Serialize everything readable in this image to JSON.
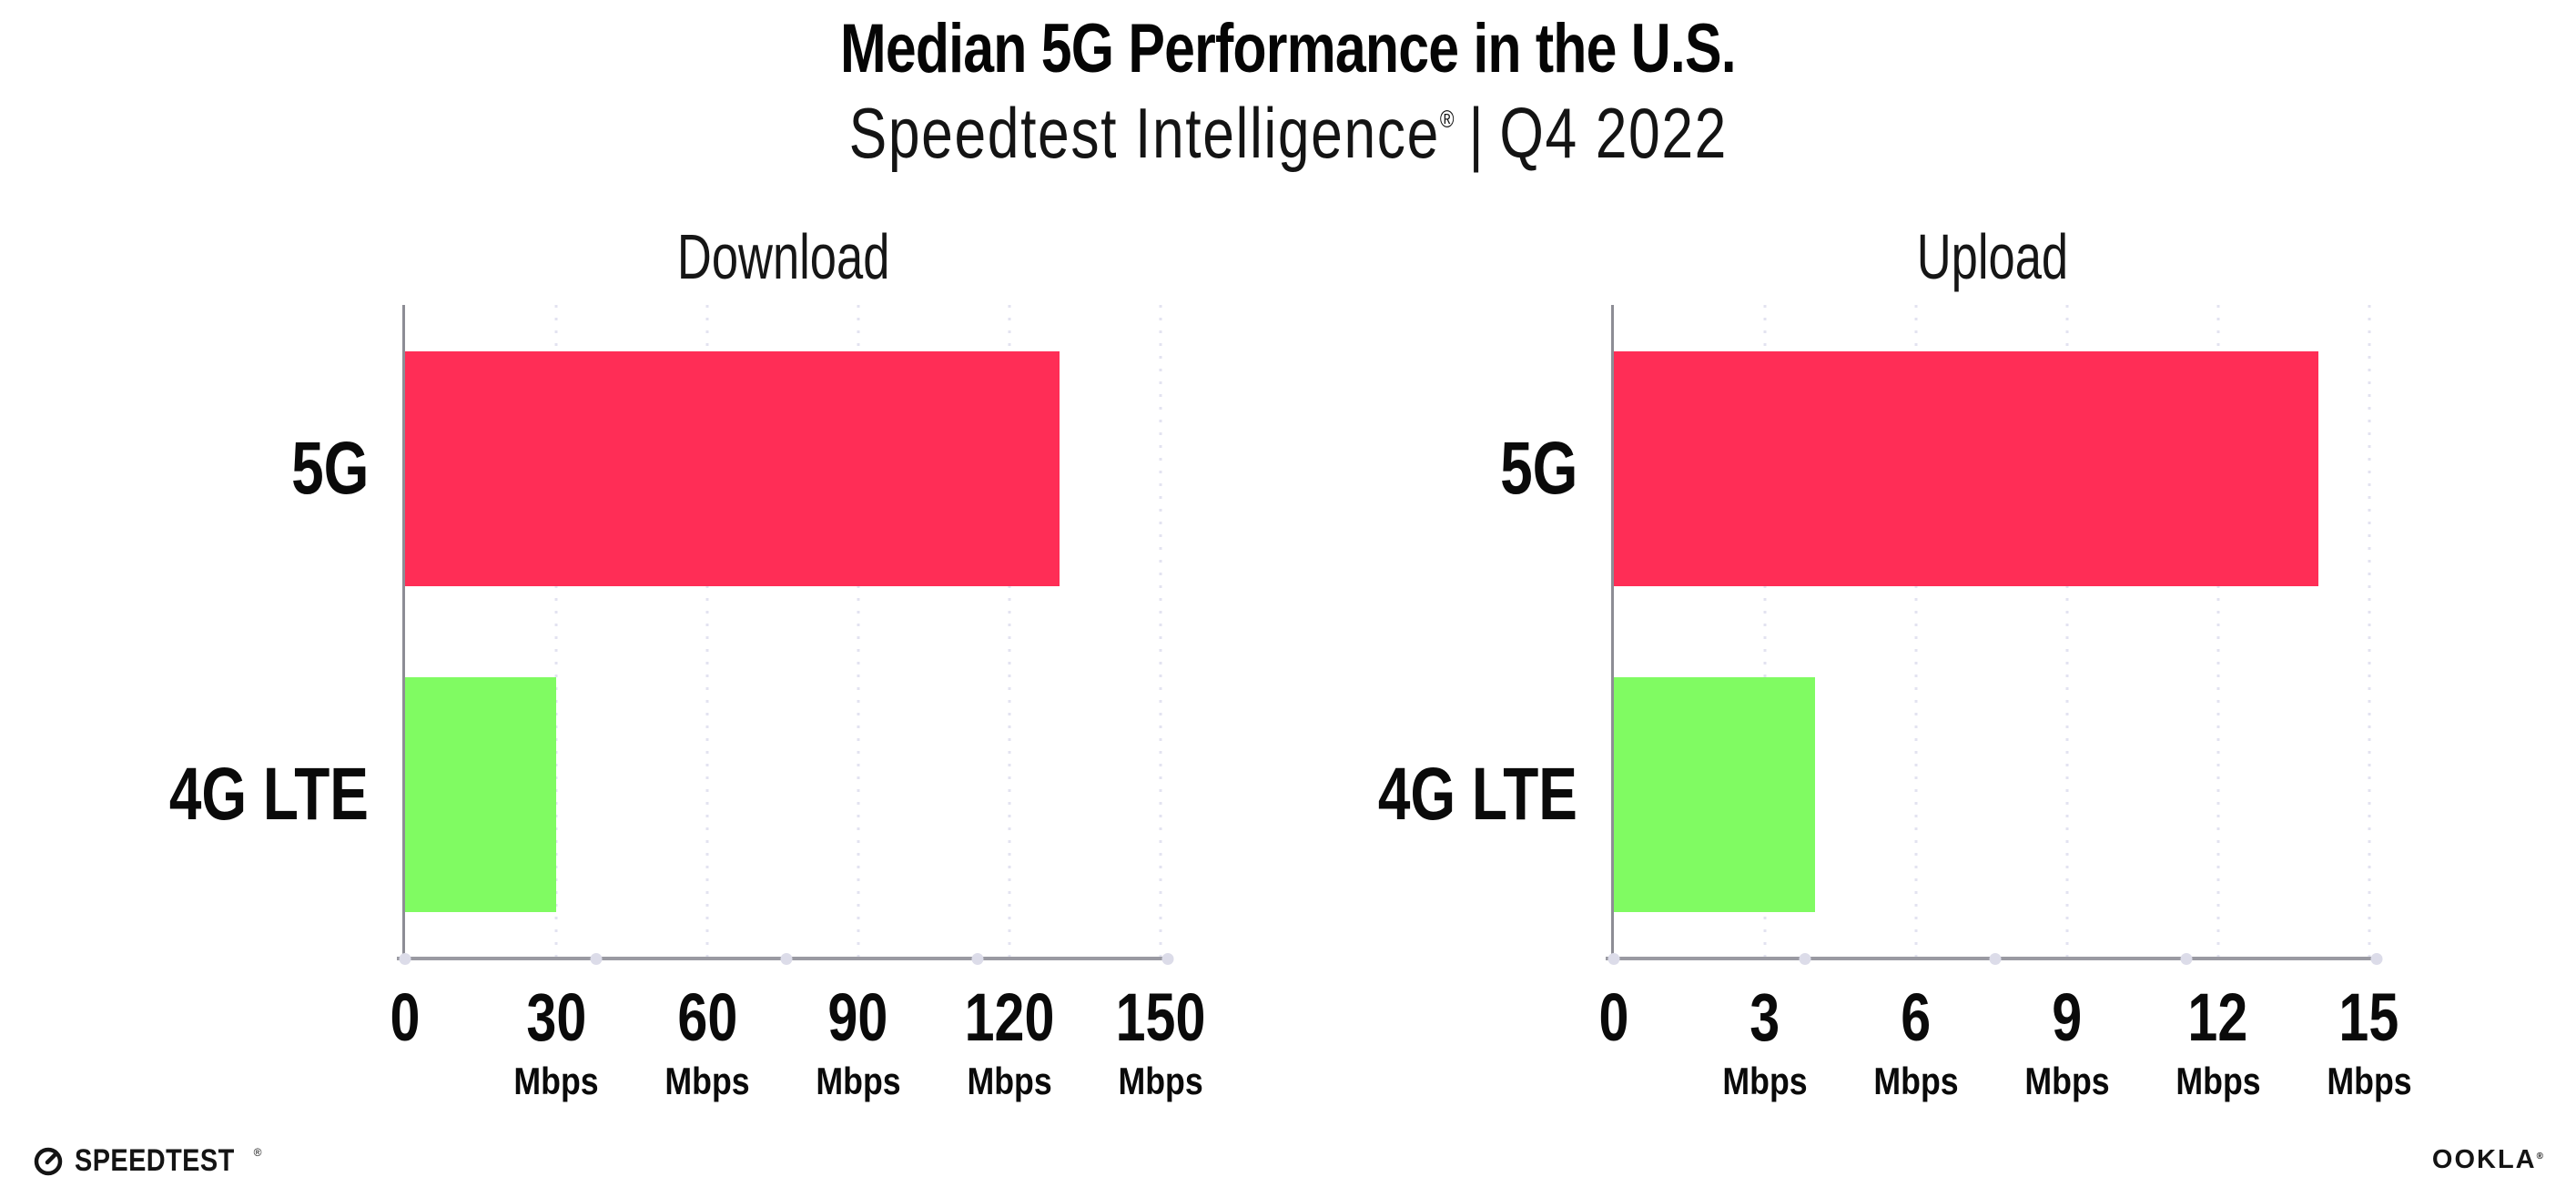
{
  "header": {
    "title": "Median 5G Performance in the U.S.",
    "subtitle_brand": "Speedtest Intelligence",
    "subtitle_reg": "®",
    "subtitle_sep": "|",
    "subtitle_period": "Q4 2022"
  },
  "chart_data": [
    {
      "type": "bar",
      "orientation": "horizontal",
      "title": "Download",
      "categories": [
        "5G",
        "4G LTE"
      ],
      "values": [
        130,
        30
      ],
      "unit": "Mbps",
      "xticks": [
        0,
        30,
        60,
        90,
        120,
        150
      ],
      "xlim": [
        0,
        151.5
      ],
      "bar_colors": [
        "#FF2D56",
        "#80FB62"
      ],
      "grid": "vertical-dotted",
      "legend": "none"
    },
    {
      "type": "bar",
      "orientation": "horizontal",
      "title": "Upload",
      "categories": [
        "5G",
        "4G LTE"
      ],
      "values": [
        14,
        4
      ],
      "unit": "Mbps",
      "xticks": [
        0,
        3,
        6,
        9,
        12,
        15
      ],
      "xlim": [
        0,
        15.15
      ],
      "bar_colors": [
        "#FF2D56",
        "#80FB62"
      ],
      "grid": "vertical-dotted",
      "legend": "none"
    }
  ],
  "footer": {
    "speedtest_label": "SPEEDTEST",
    "speedtest_reg": "®",
    "ookla_label": "OOKLA",
    "ookla_reg": "®"
  },
  "colors": {
    "bar_5g": "#FF2D56",
    "bar_4g_lte": "#80FB62",
    "gridline": "#E3E3F0",
    "x_axis": "#9A9AA2",
    "y_axis": "#8D8D95",
    "text": "#0C0C0C"
  }
}
